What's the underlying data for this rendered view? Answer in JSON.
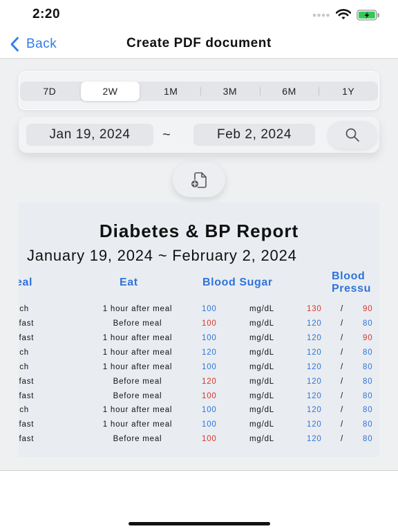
{
  "status": {
    "time": "2:20"
  },
  "nav": {
    "back_label": "Back",
    "title": "Create PDF document"
  },
  "range_tabs": [
    "7D",
    "2W",
    "1M",
    "3M",
    "6M",
    "1Y"
  ],
  "date_filter": {
    "from": "Jan 19, 2024",
    "separator": "~",
    "to": "Feb 2, 2024"
  },
  "report": {
    "title": "Diabetes & BP Report",
    "range": "January 19, 2024  ~  February 2, 2024",
    "headers": {
      "meal": "eal",
      "eat": "Eat",
      "blood_sugar": "Blood Sugar",
      "bp_line1": "Blood",
      "bp_line2": "Pressu"
    },
    "rows": [
      {
        "meal": "nch",
        "eat": "1 hour after meal",
        "bs": "100",
        "unit": "mg/dL",
        "sys": "130",
        "slash": "/",
        "dia": "90"
      },
      {
        "meal": "kfast",
        "eat": "Before meal",
        "bs": "100",
        "unit": "mg/dL",
        "sys": "120",
        "slash": "/",
        "dia": "80"
      },
      {
        "meal": "kfast",
        "eat": "1 hour after meal",
        "bs": "100",
        "unit": "mg/dL",
        "sys": "120",
        "slash": "/",
        "dia": "90"
      },
      {
        "meal": "nch",
        "eat": "1 hour after meal",
        "bs": "120",
        "unit": "mg/dL",
        "sys": "120",
        "slash": "/",
        "dia": "80"
      },
      {
        "meal": "nch",
        "eat": "1 hour after meal",
        "bs": "100",
        "unit": "mg/dL",
        "sys": "120",
        "slash": "/",
        "dia": "80"
      },
      {
        "meal": "kfast",
        "eat": "Before meal",
        "bs": "120",
        "unit": "mg/dL",
        "sys": "120",
        "slash": "/",
        "dia": "80"
      },
      {
        "meal": "kfast",
        "eat": "Before meal",
        "bs": "100",
        "unit": "mg/dL",
        "sys": "120",
        "slash": "/",
        "dia": "80"
      },
      {
        "meal": "nch",
        "eat": "1 hour after meal",
        "bs": "100",
        "unit": "mg/dL",
        "sys": "120",
        "slash": "/",
        "dia": "80"
      },
      {
        "meal": "kfast",
        "eat": "1 hour after meal",
        "bs": "100",
        "unit": "mg/dL",
        "sys": "120",
        "slash": "/",
        "dia": "80"
      },
      {
        "meal": "kfast",
        "eat": "Before meal",
        "bs": "100",
        "unit": "mg/dL",
        "sys": "120",
        "slash": "/",
        "dia": "80"
      }
    ]
  }
}
